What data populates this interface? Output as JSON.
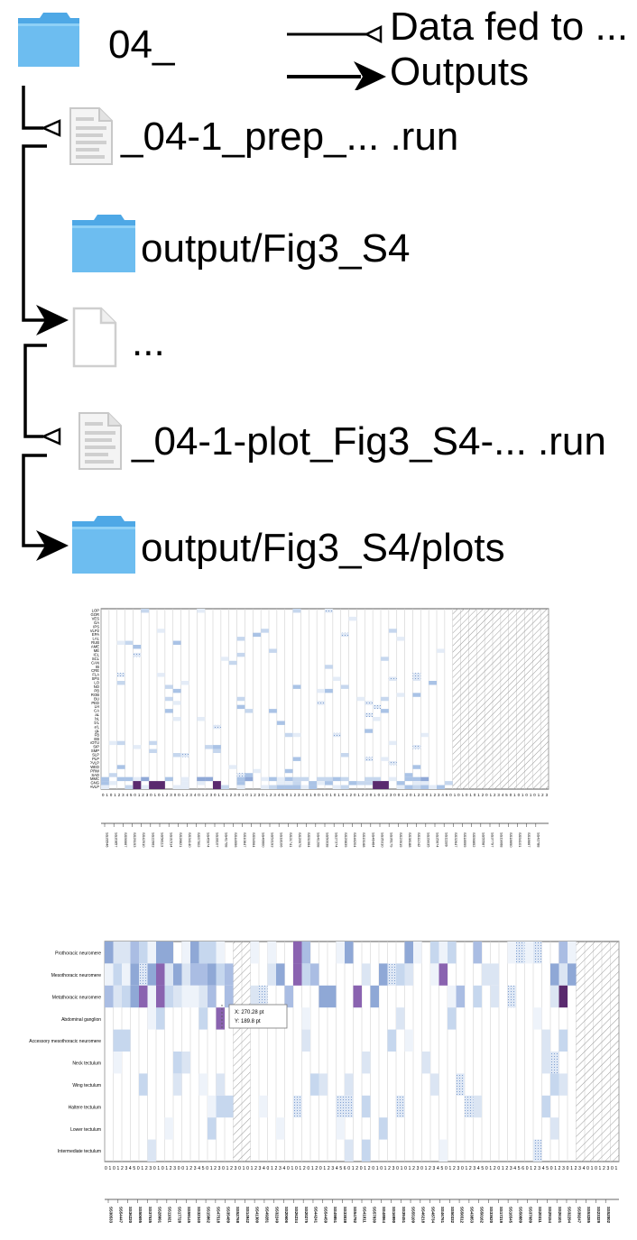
{
  "legend": {
    "fed_label": "Data fed to ...",
    "output_label": "Outputs"
  },
  "tree": {
    "root_label": "04_",
    "node1_label": "_04-1_prep_... .run",
    "node2_label": "output/Fig3_S4",
    "node3_label": "...",
    "node4_label": "_04-1-plot_Fig3_S4-... .run",
    "node5_label": "output/Fig3_S4/plots"
  },
  "icons": {
    "folder": "folder-icon",
    "file": "file-icon",
    "doc": "document-icon"
  },
  "colors": {
    "folder": "#6dbdf0",
    "folder_dark": "#4ea8e6",
    "heat_light": "#c6d7ee",
    "heat_mid": "#8fa8d6",
    "heat_dark": "#5a2a6e",
    "hatch": "#9a9a9a"
  },
  "chart_data": [
    {
      "type": "heatmap",
      "title": "",
      "rows": [
        "LOP",
        "GOR",
        "VES",
        "GA",
        "IPS",
        "AVLP2",
        "EPA",
        "LAL",
        "RUB",
        "AME",
        "ME",
        "ICL",
        "SCL",
        "CAN",
        "IB",
        "CRE",
        "FLA",
        "SPS",
        "LO",
        "NO",
        "PB",
        "ROB",
        "BU",
        "PED",
        "LH",
        "CA",
        "aL",
        "bL",
        "b'L",
        "a'L",
        "gL",
        "FB",
        "EB",
        "AOTU",
        "SIP",
        "SMP",
        "SLP",
        "PLP",
        "PVLP",
        "WED",
        "PRW",
        "SAD",
        "AMMC",
        "GNG",
        "AVLP"
      ],
      "columns_count": 56,
      "hatched_from_column": 44,
      "dark_cells": [
        [
          44,
          3
        ],
        [
          44,
          6
        ],
        [
          44,
          7
        ],
        [
          44,
          14
        ],
        [
          44,
          34
        ],
        [
          44,
          35
        ]
      ],
      "note_cells": []
    },
    {
      "type": "heatmap",
      "title": "",
      "rows": [
        "Prothoracic neuromere",
        "Mesothoracic neuromere",
        "Metathoracic neuromere",
        "Abdominal ganglion",
        "Accessory mesothoracic neuromere",
        "Neck tectulum",
        "Wing tectulum",
        "Haltere tectulum",
        "Lower tectulum",
        "Intermediate tectulum"
      ],
      "columns_count": 60,
      "hatched_columns": [
        [
          15,
          17
        ],
        [
          55,
          60
        ]
      ],
      "tooltip": {
        "line1": "X: 270.28 pt",
        "line2": "Y: 189.8 pt"
      }
    }
  ]
}
